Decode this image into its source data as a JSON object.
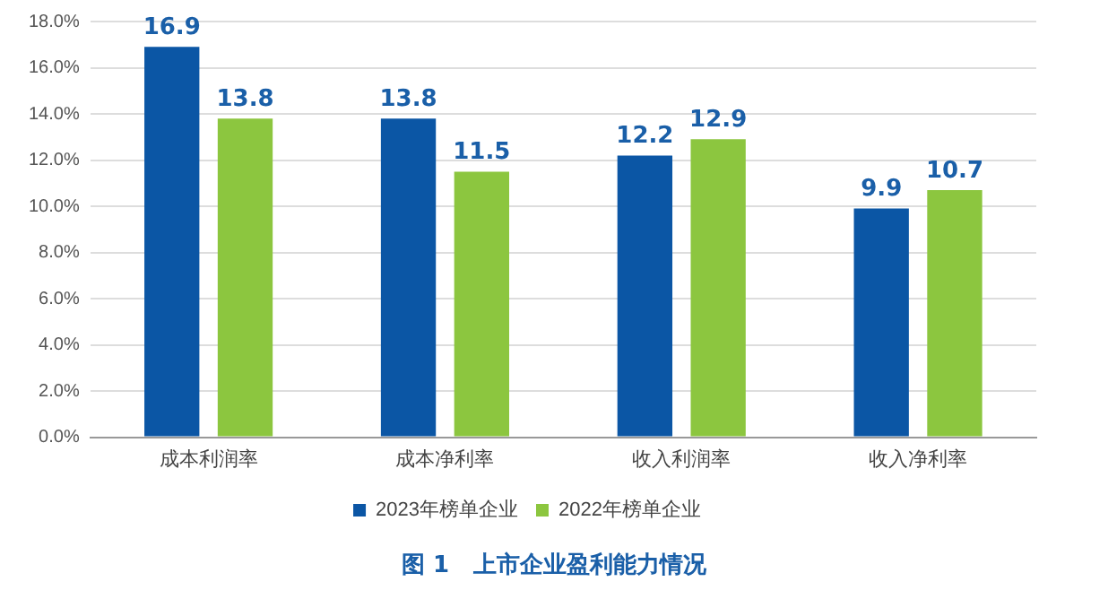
{
  "chart_data": {
    "type": "bar",
    "title": "图 1   上市企业盈利能力情况",
    "categories": [
      "成本利润率",
      "成本净利率",
      "收入利润率",
      "收入净利率"
    ],
    "series": [
      {
        "name": "2023年榜单企业",
        "color": "#0b56a5",
        "values": [
          16.9,
          13.8,
          12.2,
          9.9
        ]
      },
      {
        "name": "2022年榜单企业",
        "color": "#8cc63f",
        "values": [
          13.8,
          11.5,
          12.9,
          10.7
        ]
      }
    ],
    "ylim": [
      0,
      18
    ],
    "yticks": [
      {
        "value": 0,
        "label": "0.0%"
      },
      {
        "value": 2,
        "label": "2.0%"
      },
      {
        "value": 4,
        "label": "4.0%"
      },
      {
        "value": 6,
        "label": "6.0%"
      },
      {
        "value": 8,
        "label": "8.0%"
      },
      {
        "value": 10,
        "label": "10.0%"
      },
      {
        "value": 12,
        "label": "12.0%"
      },
      {
        "value": 14,
        "label": "14.0%"
      },
      {
        "value": 16,
        "label": "16.0%"
      },
      {
        "value": 18,
        "label": "18.0%"
      }
    ],
    "grid": "y",
    "legend": "bottom",
    "data_labels": true
  }
}
